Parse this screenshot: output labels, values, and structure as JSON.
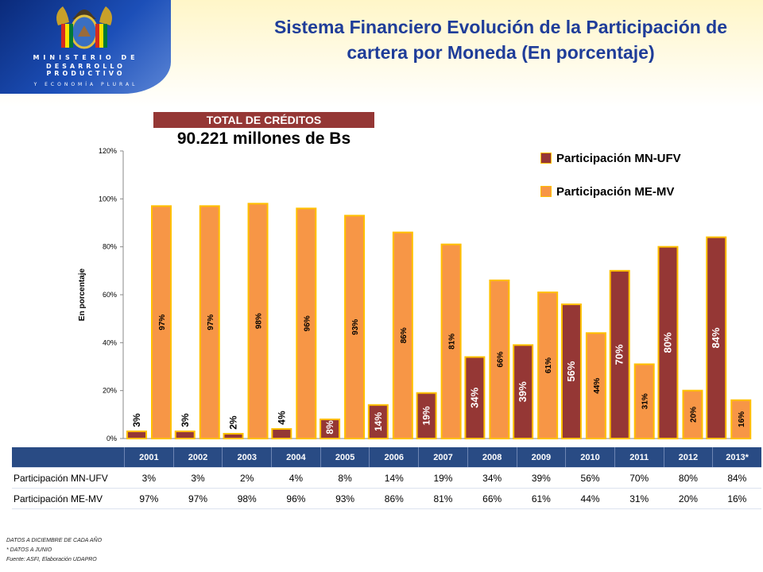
{
  "header": {
    "ministry_line1": "MINISTERIO DE",
    "ministry_line2": "DESARROLLO PRODUCTIVO",
    "ministry_line3": "Y ECONOMÍA PLURAL",
    "emblem_icon": "coat-of-arms-icon",
    "title": "Sistema Financiero Evolución de la Participación de cartera por Moneda (En porcentaje)"
  },
  "banner": {
    "label": "TOTAL DE CRÉDITOS",
    "total": "90.221 millones de Bs"
  },
  "colors": {
    "mn": "#953735",
    "me": "#f79646",
    "border": "#ffc000",
    "header_bg": "#294b84",
    "title": "#1f3d99"
  },
  "chart_data": {
    "type": "bar",
    "categories": [
      "2001",
      "2002",
      "2003",
      "2004",
      "2005",
      "2006",
      "2007",
      "2008",
      "2009",
      "2010",
      "2011",
      "2012",
      "2013*"
    ],
    "series": [
      {
        "name": "Participación MN-UFV",
        "values": [
          3,
          3,
          2,
          4,
          8,
          14,
          19,
          34,
          39,
          56,
          70,
          80,
          84
        ]
      },
      {
        "name": "Participación ME-MV",
        "values": [
          97,
          97,
          98,
          96,
          93,
          86,
          81,
          66,
          61,
          44,
          31,
          20,
          16
        ]
      }
    ],
    "ylabel": "En porcentaje",
    "ylim": [
      0,
      120
    ],
    "yticks": [
      "0%",
      "20%",
      "40%",
      "60%",
      "80%",
      "100%",
      "120%"
    ],
    "legend_position": "top-right",
    "grid": false
  },
  "table": {
    "rows": [
      {
        "label": "Participación MN-UFV",
        "cells": [
          "3%",
          "3%",
          "2%",
          "4%",
          "8%",
          "14%",
          "19%",
          "34%",
          "39%",
          "56%",
          "70%",
          "80%",
          "84%"
        ]
      },
      {
        "label": "Participación ME-MV",
        "cells": [
          "97%",
          "97%",
          "98%",
          "96%",
          "93%",
          "86%",
          "81%",
          "66%",
          "61%",
          "44%",
          "31%",
          "20%",
          "16%"
        ]
      }
    ]
  },
  "footnotes": [
    "DATOS A DICIEMBRE DE CADA AÑO",
    "* DATOS A JUNIO",
    "Fuente: ASFI, Elaboración UDAPRO"
  ]
}
